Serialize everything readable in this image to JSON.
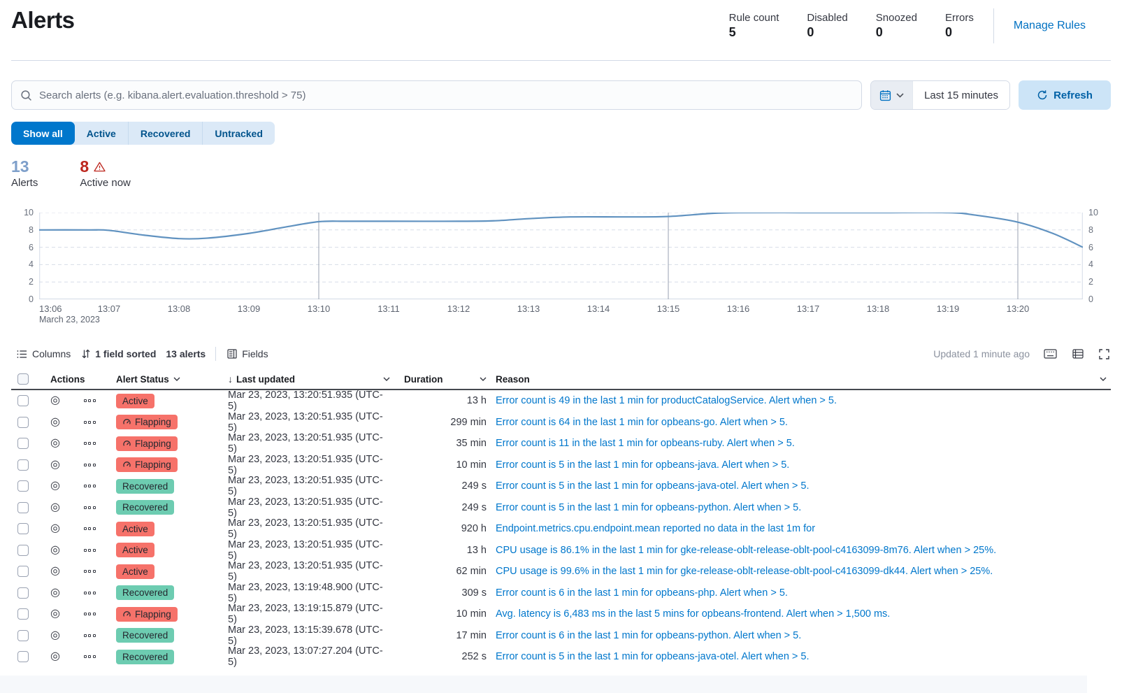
{
  "header": {
    "title": "Alerts",
    "stats": [
      {
        "label": "Rule count",
        "value": "5"
      },
      {
        "label": "Disabled",
        "value": "0"
      },
      {
        "label": "Snoozed",
        "value": "0"
      },
      {
        "label": "Errors",
        "value": "0"
      }
    ],
    "manage_rules_label": "Manage Rules"
  },
  "search": {
    "placeholder": "Search alerts (e.g. kibana.alert.evaluation.threshold > 75)",
    "value": "",
    "time_range": "Last 15 minutes",
    "refresh_label": "Refresh"
  },
  "filters": {
    "tabs": [
      {
        "label": "Show all",
        "active": true
      },
      {
        "label": "Active",
        "active": false
      },
      {
        "label": "Recovered",
        "active": false
      },
      {
        "label": "Untracked",
        "active": false
      }
    ]
  },
  "summary": {
    "alerts_count": "13",
    "alerts_label": "Alerts",
    "active_count": "8",
    "active_label": "Active now"
  },
  "chart_data": {
    "type": "line",
    "title": "Alerts count over time",
    "x_tick_labels": [
      "13:06",
      "13:07",
      "13:08",
      "13:09",
      "13:10",
      "13:11",
      "13:12",
      "13:13",
      "13:14",
      "13:15",
      "13:16",
      "13:17",
      "13:18",
      "13:19",
      "13:20"
    ],
    "x_subtitle": "March 23, 2023",
    "x_total_minutes": 14.93,
    "ylim": [
      0,
      10
    ],
    "y_ticks": [
      0,
      2,
      4,
      6,
      8,
      10
    ],
    "grid": "dashed-horizontal",
    "annotation_lines_min": [
      4,
      9,
      14
    ],
    "series": [
      {
        "name": "alerts",
        "color": "#6092c0",
        "points": [
          [
            0,
            8
          ],
          [
            0.7,
            8
          ],
          [
            1,
            7.95
          ],
          [
            1.5,
            7.4
          ],
          [
            2,
            7
          ],
          [
            2.4,
            7.05
          ],
          [
            3,
            7.6
          ],
          [
            3.5,
            8.3
          ],
          [
            4,
            8.95
          ],
          [
            4.4,
            9
          ],
          [
            5,
            9
          ],
          [
            6,
            9
          ],
          [
            6.5,
            9.05
          ],
          [
            7,
            9.3
          ],
          [
            7.6,
            9.5
          ],
          [
            8.4,
            9.5
          ],
          [
            9,
            9.55
          ],
          [
            9.6,
            9.9
          ],
          [
            10,
            10
          ],
          [
            11,
            10
          ],
          [
            12,
            10
          ],
          [
            13,
            10
          ],
          [
            13.4,
            9.7
          ],
          [
            14,
            8.9
          ],
          [
            14.5,
            7.6
          ],
          [
            14.93,
            6
          ]
        ]
      }
    ]
  },
  "toolbar": {
    "columns_label": "Columns",
    "sorted_label": "1 field sorted",
    "alert_count_label": "13 alerts",
    "fields_label": "Fields",
    "updated_label": "Updated 1 minute ago"
  },
  "table": {
    "headers": {
      "actions": "Actions",
      "status": "Alert Status",
      "updated": "Last updated",
      "duration": "Duration",
      "reason": "Reason"
    },
    "rows": [
      {
        "status": "Active",
        "flapping": false,
        "updated": "Mar 23, 2023, 13:20:51.935 (UTC-5)",
        "duration": "13 h",
        "reason": "Error count is 49 in the last 1 min for productCatalogService. Alert when > 5."
      },
      {
        "status": "Flapping",
        "flapping": true,
        "updated": "Mar 23, 2023, 13:20:51.935 (UTC-5)",
        "duration": "299 min",
        "reason": "Error count is 64 in the last 1 min for opbeans-go. Alert when > 5."
      },
      {
        "status": "Flapping",
        "flapping": true,
        "updated": "Mar 23, 2023, 13:20:51.935 (UTC-5)",
        "duration": "35 min",
        "reason": "Error count is 11 in the last 1 min for opbeans-ruby. Alert when > 5."
      },
      {
        "status": "Flapping",
        "flapping": true,
        "updated": "Mar 23, 2023, 13:20:51.935 (UTC-5)",
        "duration": "10 min",
        "reason": "Error count is 5 in the last 1 min for opbeans-java. Alert when > 5."
      },
      {
        "status": "Recovered",
        "flapping": false,
        "updated": "Mar 23, 2023, 13:20:51.935 (UTC-5)",
        "duration": "249 s",
        "reason": "Error count is 5 in the last 1 min for opbeans-java-otel. Alert when > 5."
      },
      {
        "status": "Recovered",
        "flapping": false,
        "updated": "Mar 23, 2023, 13:20:51.935 (UTC-5)",
        "duration": "249 s",
        "reason": "Error count is 5 in the last 1 min for opbeans-python. Alert when > 5."
      },
      {
        "status": "Active",
        "flapping": false,
        "updated": "Mar 23, 2023, 13:20:51.935 (UTC-5)",
        "duration": "920 h",
        "reason": "Endpoint.metrics.cpu.endpoint.mean reported no data in the last 1m for"
      },
      {
        "status": "Active",
        "flapping": false,
        "updated": "Mar 23, 2023, 13:20:51.935 (UTC-5)",
        "duration": "13 h",
        "reason": "CPU usage is 86.1% in the last 1 min for gke-release-oblt-release-oblt-pool-c4163099-8m76. Alert when > 25%."
      },
      {
        "status": "Active",
        "flapping": false,
        "updated": "Mar 23, 2023, 13:20:51.935 (UTC-5)",
        "duration": "62 min",
        "reason": "CPU usage is 99.6% in the last 1 min for gke-release-oblt-release-oblt-pool-c4163099-dk44. Alert when > 25%."
      },
      {
        "status": "Recovered",
        "flapping": false,
        "updated": "Mar 23, 2023, 13:19:48.900 (UTC-5)",
        "duration": "309 s",
        "reason": "Error count is 6 in the last 1 min for opbeans-php. Alert when > 5."
      },
      {
        "status": "Flapping",
        "flapping": true,
        "updated": "Mar 23, 2023, 13:19:15.879 (UTC-5)",
        "duration": "10 min",
        "reason": "Avg. latency is 6,483 ms in the last 5 mins for opbeans-frontend. Alert when > 1,500 ms."
      },
      {
        "status": "Recovered",
        "flapping": false,
        "updated": "Mar 23, 2023, 13:15:39.678 (UTC-5)",
        "duration": "17 min",
        "reason": "Error count is 6 in the last 1 min for opbeans-python. Alert when > 5."
      },
      {
        "status": "Recovered",
        "flapping": false,
        "updated": "Mar 23, 2023, 13:07:27.204 (UTC-5)",
        "duration": "252 s",
        "reason": "Error count is 5 in the last 1 min for opbeans-java-otel. Alert when > 5."
      }
    ]
  },
  "colors": {
    "accent_blue": "#0077cc",
    "link_blue": "#0077cc",
    "badge_danger": "#f6726a",
    "badge_success": "#6dccb1",
    "stat_blue": "#7e9fca",
    "stat_red": "#bd271e",
    "chart_line": "#6092c0",
    "grid_dashed": "#d8dde8",
    "annotation_line": "#9aa2b0"
  }
}
